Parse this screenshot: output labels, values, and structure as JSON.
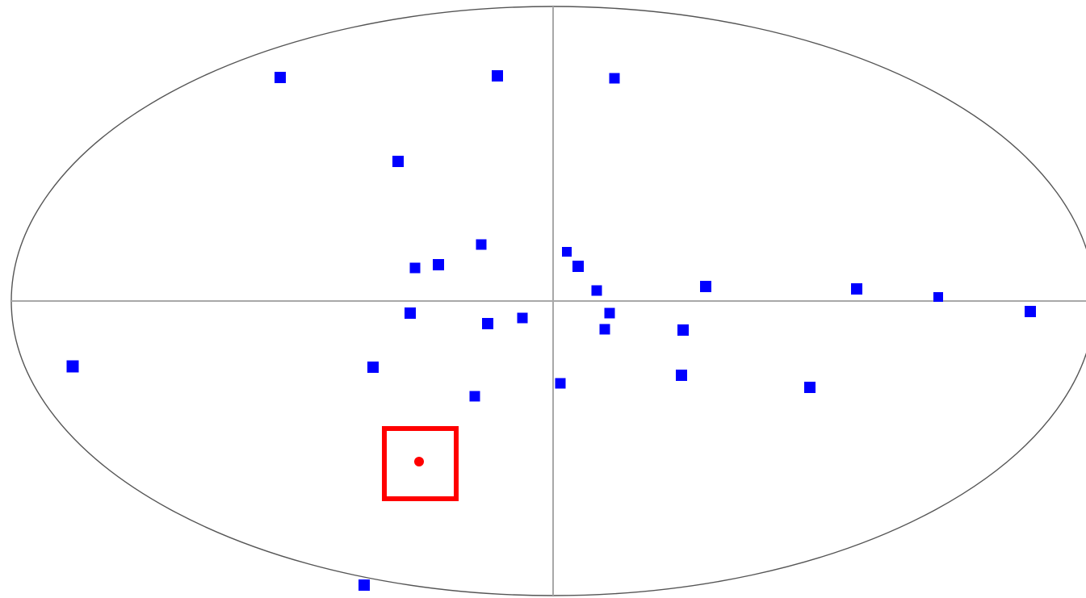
{
  "colors": {
    "background": "#ffffff",
    "outline": "#555555",
    "axes": "#a8a8a8",
    "marker": "#0000ff",
    "highlight": "#ff0000"
  },
  "markers": {
    "style": "blue squares",
    "count": 30
  },
  "highlight": {
    "style": "red dot inside a red square box",
    "count": 1
  }
}
